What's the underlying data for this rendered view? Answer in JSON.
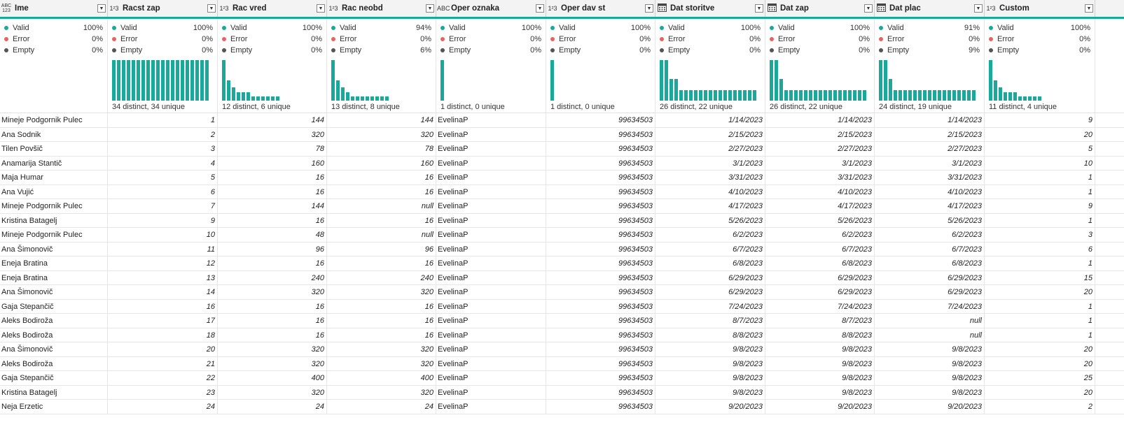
{
  "quality_labels": {
    "valid": "Valid",
    "error": "Error",
    "empty": "Empty"
  },
  "colors": {
    "accent": "#18a99a",
    "valid": "#18a99a",
    "error": "#e8635f",
    "empty": "#555555"
  },
  "columns": [
    {
      "name": "Ime",
      "type": "ABC\n123",
      "type_icon": "any-type-icon",
      "align": "left",
      "width": 154,
      "valid": "100%",
      "error": "0%",
      "empty": "0%",
      "distinct_text": "",
      "bars": []
    },
    {
      "name": "Racst zap",
      "type": "1²3",
      "type_icon": "number-type-icon",
      "align": "right",
      "width": 157,
      "valid": "100%",
      "error": "0%",
      "empty": "0%",
      "distinct_text": "34 distinct, 34 unique",
      "bars": [
        1,
        1,
        1,
        1,
        1,
        1,
        1,
        1,
        1,
        1,
        1,
        1,
        1,
        1,
        1,
        1,
        1,
        1,
        1,
        1
      ]
    },
    {
      "name": "Rac vred",
      "type": "1²3",
      "type_icon": "number-type-icon",
      "align": "right",
      "width": 156,
      "valid": "100%",
      "error": "0%",
      "empty": "0%",
      "distinct_text": "12 distinct, 6 unique",
      "bars": [
        1,
        0.5,
        0.33,
        0.2,
        0.2,
        0.2,
        0.1,
        0.1,
        0.1,
        0.1,
        0.1,
        0.1
      ]
    },
    {
      "name": "Rac neobd",
      "type": "1²3",
      "type_icon": "number-type-icon",
      "align": "right",
      "width": 156,
      "valid": "94%",
      "error": "0%",
      "empty": "6%",
      "distinct_text": "13 distinct, 8 unique",
      "bars": [
        1,
        0.5,
        0.33,
        0.2,
        0.1,
        0.1,
        0.1,
        0.1,
        0.1,
        0.1,
        0.1,
        0.1
      ]
    },
    {
      "name": "Oper oznaka",
      "type": "ABC",
      "type_icon": "text-type-icon",
      "align": "left",
      "width": 157,
      "valid": "100%",
      "error": "0%",
      "empty": "0%",
      "distinct_text": "1 distinct, 0 unique",
      "bars": [
        1
      ]
    },
    {
      "name": "Oper dav st",
      "type": "1²3",
      "type_icon": "number-type-icon",
      "align": "right",
      "width": 156,
      "valid": "100%",
      "error": "0%",
      "empty": "0%",
      "distinct_text": "1 distinct, 0 unique",
      "bars": [
        1
      ]
    },
    {
      "name": "Dat storitve",
      "type": "cal",
      "type_icon": "date-type-icon",
      "align": "right",
      "width": 157,
      "valid": "100%",
      "error": "0%",
      "empty": "0%",
      "distinct_text": "26 distinct, 22 unique",
      "bars": [
        1,
        1,
        0.53,
        0.53,
        0.26,
        0.26,
        0.26,
        0.26,
        0.26,
        0.26,
        0.26,
        0.26,
        0.26,
        0.26,
        0.26,
        0.26,
        0.26,
        0.26,
        0.26,
        0.26
      ]
    },
    {
      "name": "Dat zap",
      "type": "cal",
      "type_icon": "date-type-icon",
      "align": "right",
      "width": 156,
      "valid": "100%",
      "error": "0%",
      "empty": "0%",
      "distinct_text": "26 distinct, 22 unique",
      "bars": [
        1,
        1,
        0.53,
        0.26,
        0.26,
        0.26,
        0.26,
        0.26,
        0.26,
        0.26,
        0.26,
        0.26,
        0.26,
        0.26,
        0.26,
        0.26,
        0.26,
        0.26,
        0.26,
        0.26
      ]
    },
    {
      "name": "Dat plac",
      "type": "cal",
      "type_icon": "date-type-icon",
      "align": "right",
      "width": 157,
      "valid": "91%",
      "error": "0%",
      "empty": "9%",
      "distinct_text": "24 distinct, 19 unique",
      "bars": [
        1,
        1,
        0.53,
        0.26,
        0.26,
        0.26,
        0.26,
        0.26,
        0.26,
        0.26,
        0.26,
        0.26,
        0.26,
        0.26,
        0.26,
        0.26,
        0.26,
        0.26,
        0.26,
        0.26
      ]
    },
    {
      "name": "Custom",
      "type": "1²3",
      "type_icon": "number-type-icon",
      "align": "right",
      "width": 158,
      "valid": "100%",
      "error": "0%",
      "empty": "0%",
      "distinct_text": "11 distinct, 4 unique",
      "bars": [
        1,
        0.5,
        0.33,
        0.2,
        0.2,
        0.2,
        0.1,
        0.1,
        0.1,
        0.1,
        0.1
      ]
    }
  ],
  "rows": [
    [
      "Mineje Podgornik Pulec",
      "1",
      "144",
      "144",
      "EvelinaP",
      "99634503",
      "1/14/2023",
      "1/14/2023",
      "1/14/2023",
      "9"
    ],
    [
      "Ana Sodnik",
      "2",
      "320",
      "320",
      "EvelinaP",
      "99634503",
      "2/15/2023",
      "2/15/2023",
      "2/15/2023",
      "20"
    ],
    [
      "Tilen Povšič",
      "3",
      "78",
      "78",
      "EvelinaP",
      "99634503",
      "2/27/2023",
      "2/27/2023",
      "2/27/2023",
      "5"
    ],
    [
      "Anamarija Stantič",
      "4",
      "160",
      "160",
      "EvelinaP",
      "99634503",
      "3/1/2023",
      "3/1/2023",
      "3/1/2023",
      "10"
    ],
    [
      "Maja Humar",
      "5",
      "16",
      "16",
      "EvelinaP",
      "99634503",
      "3/31/2023",
      "3/31/2023",
      "3/31/2023",
      "1"
    ],
    [
      "Ana Vujić",
      "6",
      "16",
      "16",
      "EvelinaP",
      "99634503",
      "4/10/2023",
      "4/10/2023",
      "4/10/2023",
      "1"
    ],
    [
      "Mineje Podgornik Pulec",
      "7",
      "144",
      "null",
      "EvelinaP",
      "99634503",
      "4/17/2023",
      "4/17/2023",
      "4/17/2023",
      "9"
    ],
    [
      "Kristina Batagelj",
      "9",
      "16",
      "16",
      "EvelinaP",
      "99634503",
      "5/26/2023",
      "5/26/2023",
      "5/26/2023",
      "1"
    ],
    [
      "Mineje Podgornik Pulec",
      "10",
      "48",
      "null",
      "EvelinaP",
      "99634503",
      "6/2/2023",
      "6/2/2023",
      "6/2/2023",
      "3"
    ],
    [
      "Ana Šimonovič",
      "11",
      "96",
      "96",
      "EvelinaP",
      "99634503",
      "6/7/2023",
      "6/7/2023",
      "6/7/2023",
      "6"
    ],
    [
      "Eneja Bratina",
      "12",
      "16",
      "16",
      "EvelinaP",
      "99634503",
      "6/8/2023",
      "6/8/2023",
      "6/8/2023",
      "1"
    ],
    [
      "Eneja Bratina",
      "13",
      "240",
      "240",
      "EvelinaP",
      "99634503",
      "6/29/2023",
      "6/29/2023",
      "6/29/2023",
      "15"
    ],
    [
      "Ana Šimonovič",
      "14",
      "320",
      "320",
      "EvelinaP",
      "99634503",
      "6/29/2023",
      "6/29/2023",
      "6/29/2023",
      "20"
    ],
    [
      "Gaja Stepančič",
      "16",
      "16",
      "16",
      "EvelinaP",
      "99634503",
      "7/24/2023",
      "7/24/2023",
      "7/24/2023",
      "1"
    ],
    [
      "Aleks Bodiroža",
      "17",
      "16",
      "16",
      "EvelinaP",
      "99634503",
      "8/7/2023",
      "8/7/2023",
      "null",
      "1"
    ],
    [
      "Aleks Bodiroža",
      "18",
      "16",
      "16",
      "EvelinaP",
      "99634503",
      "8/8/2023",
      "8/8/2023",
      "null",
      "1"
    ],
    [
      "Ana Šimonovič",
      "20",
      "320",
      "320",
      "EvelinaP",
      "99634503",
      "9/8/2023",
      "9/8/2023",
      "9/8/2023",
      "20"
    ],
    [
      "Aleks Bodiroža",
      "21",
      "320",
      "320",
      "EvelinaP",
      "99634503",
      "9/8/2023",
      "9/8/2023",
      "9/8/2023",
      "20"
    ],
    [
      "Gaja Stepančič",
      "22",
      "400",
      "400",
      "EvelinaP",
      "99634503",
      "9/8/2023",
      "9/8/2023",
      "9/8/2023",
      "25"
    ],
    [
      "Kristina Batagelj",
      "23",
      "320",
      "320",
      "EvelinaP",
      "99634503",
      "9/8/2023",
      "9/8/2023",
      "9/8/2023",
      "20"
    ],
    [
      "Neja Erzetic",
      "24",
      "24",
      "24",
      "EvelinaP",
      "99634503",
      "9/20/2023",
      "9/20/2023",
      "9/20/2023",
      "2"
    ]
  ]
}
